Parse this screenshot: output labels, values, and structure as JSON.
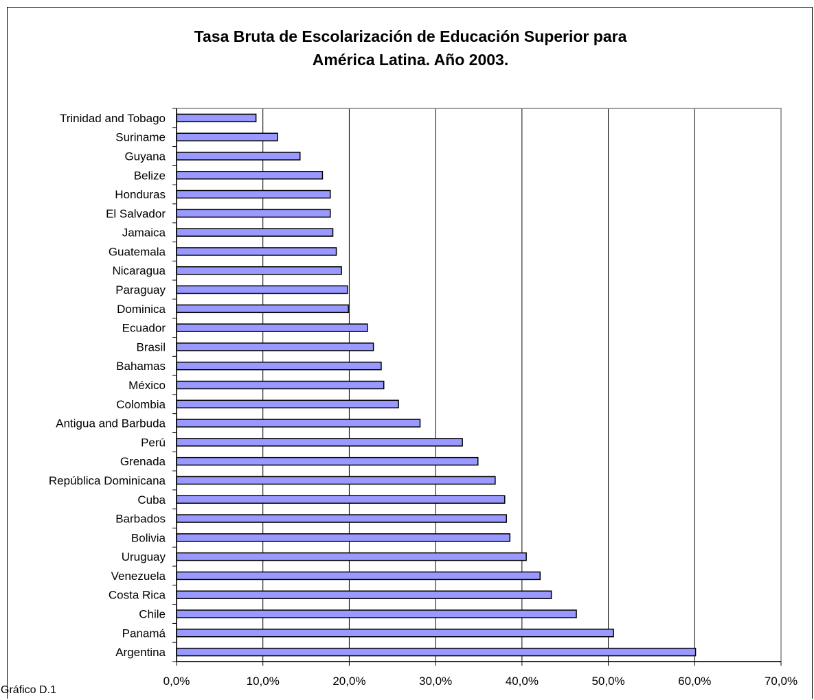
{
  "caption": "Gráfico D.1",
  "chart_data": {
    "type": "bar",
    "orientation": "horizontal",
    "title": [
      "Tasa Bruta de Escolarización de Educación Superior para",
      "América Latina. Año 2003."
    ],
    "categories": [
      "Trinidad and Tobago",
      "Suriname",
      "Guyana",
      "Belize",
      "Honduras",
      "El Salvador",
      "Jamaica",
      "Guatemala",
      "Nicaragua",
      "Paraguay",
      "Dominica",
      "Ecuador",
      "Brasil",
      "Bahamas",
      "México",
      "Colombia",
      "Antigua and Barbuda",
      "Perú",
      "Grenada",
      "República Dominicana",
      "Cuba",
      "Barbados",
      "Bolivia",
      "Uruguay",
      "Venezuela",
      "Costa Rica",
      "Chile",
      "Panamá",
      "Argentina"
    ],
    "values": [
      9.2,
      11.7,
      14.3,
      16.9,
      17.8,
      17.8,
      18.1,
      18.5,
      19.1,
      19.8,
      19.9,
      22.1,
      22.8,
      23.7,
      24.0,
      25.7,
      28.2,
      33.1,
      34.9,
      36.9,
      38.0,
      38.2,
      38.6,
      40.5,
      42.1,
      43.4,
      46.3,
      50.6,
      60.1
    ],
    "xlim": [
      0,
      70
    ],
    "xticks": [
      "0,0%",
      "10,0%",
      "20,0%",
      "30,0%",
      "40,0%",
      "50,0%",
      "60,0%",
      "70,0%"
    ],
    "grid": "vertical",
    "bar_color": "#9999ff"
  }
}
